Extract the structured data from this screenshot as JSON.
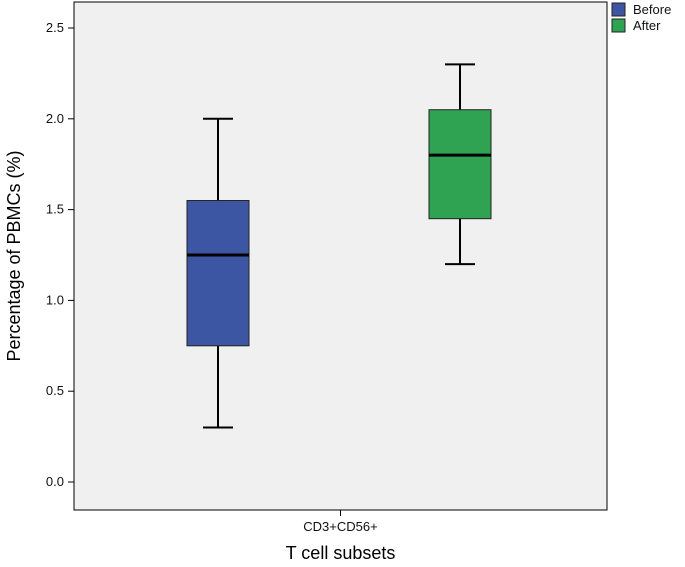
{
  "chart_data": {
    "type": "box",
    "title": "",
    "xlabel": "T cell subsets",
    "ylabel": "Percentage of PBMCs (%)",
    "categories": [
      "CD3+CD56+"
    ],
    "ylim": [
      0,
      2.6
    ],
    "yticks": [
      "0.0",
      "0.5",
      "1.0",
      "1.5",
      "2.0",
      "2.5"
    ],
    "grid": false,
    "legend_position": "top-right",
    "plot_background": "#f0f0f0",
    "series": [
      {
        "name": "Before",
        "color": "#3d56a4",
        "min": 0.3,
        "q1": 0.75,
        "median": 1.25,
        "q3": 1.55,
        "max": 2.0
      },
      {
        "name": "After",
        "color": "#2fa351",
        "min": 1.2,
        "q1": 1.45,
        "median": 1.8,
        "q3": 2.05,
        "max": 2.3
      }
    ]
  }
}
